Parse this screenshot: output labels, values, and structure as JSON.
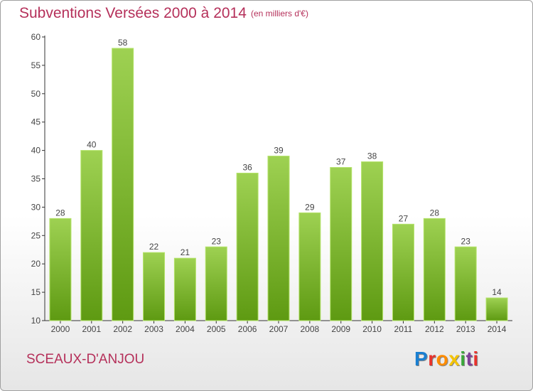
{
  "header": {
    "title": "Subventions Versées 2000 à 2014",
    "subtitle": "(en milliers d'€)"
  },
  "footer": {
    "commune": "SCEAUX-D'ANJOU",
    "brand": "Proxiti",
    "brand_colors": [
      "#1a7fd1",
      "#e8322c",
      "#ff8c00",
      "#f5c400",
      "#3aa63a",
      "#7f3f98",
      "#e8322c"
    ]
  },
  "chart_data": {
    "type": "bar",
    "categories": [
      "2000",
      "2001",
      "2002",
      "2003",
      "2004",
      "2005",
      "2006",
      "2007",
      "2008",
      "2009",
      "2010",
      "2011",
      "2012",
      "2013",
      "2014"
    ],
    "values": [
      28,
      40,
      58,
      22,
      21,
      23,
      36,
      39,
      29,
      37,
      38,
      27,
      28,
      23,
      14
    ],
    "data_labels": [
      "28",
      "40",
      "58",
      "22",
      "21",
      "23",
      "36",
      "39",
      "29",
      "37",
      "38",
      "27",
      "28",
      "23",
      "14"
    ],
    "yticks": [
      "10",
      "15",
      "20",
      "25",
      "30",
      "35",
      "40",
      "45",
      "50",
      "55",
      "60"
    ],
    "ylim": [
      10,
      60
    ],
    "grid": false,
    "colors": {
      "bar_top": "#9ed152",
      "bar_bottom": "#5e9a12",
      "bar_edge": "#b4e36a",
      "axis": "#333333",
      "text": "#444444"
    }
  }
}
